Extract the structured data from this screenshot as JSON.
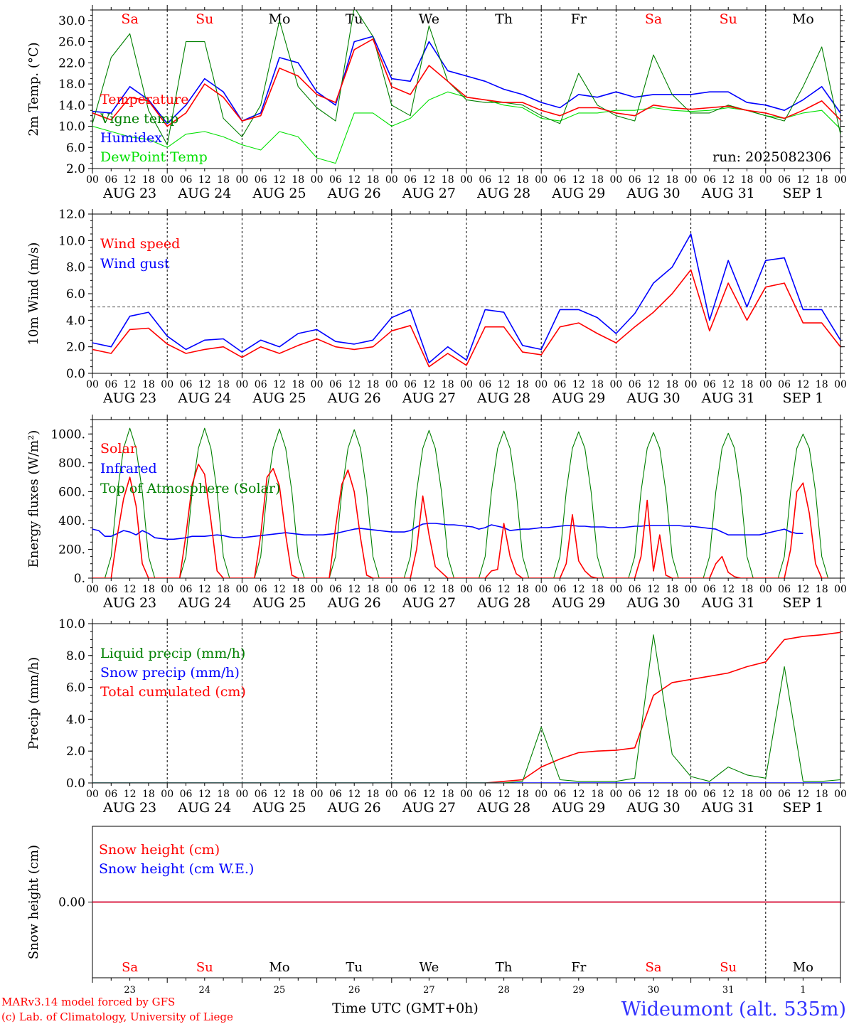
{
  "days": {
    "weekday": [
      "Sa",
      "Su",
      "Mo",
      "Tu",
      "We",
      "Th",
      "Fr",
      "Sa",
      "Su",
      "Mo"
    ],
    "weekend": [
      true,
      true,
      false,
      false,
      false,
      false,
      false,
      true,
      true,
      false
    ],
    "date": [
      "AUG 23",
      "AUG 24",
      "AUG 25",
      "AUG 26",
      "AUG 27",
      "AUG 28",
      "AUG 29",
      "AUG 30",
      "AUG 31",
      "SEP  1"
    ],
    "daynum": [
      "23",
      "24",
      "25",
      "26",
      "27",
      "28",
      "29",
      "30",
      "31",
      "1"
    ],
    "hours": [
      "00",
      "06",
      "12",
      "18"
    ],
    "end_hour": "00"
  },
  "run_label": "run: 2025082306",
  "footer": {
    "model": "MARv3.14 model forced by GFS",
    "credit": "(c) Lab. of Climatology, University of Liege",
    "xlabel": "Time UTC (GMT+0h)",
    "station": "Wideumont (alt. 535m)"
  },
  "colors": {
    "red": "#ff0000",
    "blue": "#0000ff",
    "green": "#008000",
    "lightgreen": "#00e000",
    "grid": "#000000"
  },
  "chart_data": [
    {
      "type": "line",
      "ylabel": "2m Temp. (°C)",
      "ylim": [
        2,
        32
      ],
      "yticks": [
        "2.0",
        "6.0",
        "10.0",
        "14.0",
        "18.0",
        "22.0",
        "26.0",
        "30.0"
      ],
      "x_hours": [
        0,
        6,
        12,
        18,
        24,
        30,
        36,
        42,
        48,
        54,
        60,
        66,
        72,
        78,
        84,
        90,
        96,
        102,
        108,
        114,
        120,
        126,
        132,
        138,
        144,
        150,
        156,
        162,
        168,
        174,
        180,
        186,
        192,
        198,
        204,
        210,
        216,
        222,
        228,
        234,
        240
      ],
      "series": [
        {
          "name": "Temperature",
          "color": "red",
          "values": [
            12.5,
            11.2,
            15.5,
            14.8,
            10.0,
            12.5,
            18.0,
            15.5,
            11.0,
            12.0,
            21.0,
            19.5,
            16.0,
            14.5,
            24.5,
            26.5,
            17.5,
            16.0,
            21.5,
            18.5,
            15.5,
            15.0,
            14.5,
            14.5,
            13.0,
            12.0,
            13.5,
            13.5,
            12.5,
            12.0,
            14.0,
            13.5,
            13.2,
            13.5,
            13.8,
            13.0,
            12.5,
            11.5,
            13.0,
            14.8,
            11.2
          ]
        },
        {
          "name": "Vigne temp",
          "color": "green",
          "values": [
            10.5,
            23.0,
            27.5,
            13.0,
            6.5,
            26.0,
            26.0,
            11.5,
            8.0,
            14.0,
            30.0,
            17.5,
            13.5,
            11.0,
            32.5,
            27.0,
            14.0,
            12.0,
            29.0,
            18.5,
            15.0,
            14.5,
            14.5,
            14.0,
            12.0,
            10.5,
            20.0,
            14.0,
            12.0,
            11.0,
            23.5,
            16.0,
            12.5,
            12.5,
            14.0,
            13.0,
            12.0,
            11.0,
            17.5,
            25.0,
            8.5
          ]
        },
        {
          "name": "Humidex",
          "color": "blue",
          "values": [
            12.8,
            12.5,
            17.5,
            15.0,
            10.5,
            14.0,
            19.0,
            16.5,
            11.0,
            12.5,
            23.0,
            22.0,
            16.5,
            14.0,
            26.0,
            27.0,
            19.0,
            18.5,
            26.0,
            20.5,
            19.5,
            18.5,
            17.0,
            16.0,
            14.5,
            13.5,
            16.0,
            15.5,
            16.5,
            15.5,
            16.0,
            16.0,
            16.0,
            16.5,
            16.5,
            14.5,
            14.0,
            13.0,
            15.0,
            17.5,
            12.5
          ]
        },
        {
          "name": "DewPoint Temp",
          "color": "lightgreen",
          "values": [
            10.0,
            9.0,
            8.0,
            7.5,
            6.0,
            8.5,
            9.0,
            8.0,
            6.5,
            5.5,
            9.0,
            8.0,
            4.0,
            3.0,
            12.5,
            12.5,
            10.0,
            11.5,
            15.0,
            16.5,
            15.5,
            15.0,
            14.0,
            13.5,
            11.5,
            11.0,
            12.5,
            12.5,
            13.0,
            13.0,
            13.5,
            13.0,
            12.8,
            13.0,
            13.5,
            13.0,
            12.0,
            11.5,
            12.5,
            13.0,
            9.5
          ]
        }
      ]
    },
    {
      "type": "line",
      "ylabel": "10m Wind (m/s)",
      "ylim": [
        0,
        12
      ],
      "yticks": [
        "0.0",
        "2.0",
        "4.0",
        "6.0",
        "8.0",
        "10.0",
        "12.0"
      ],
      "reference_line": 5,
      "x_hours": [
        0,
        6,
        12,
        18,
        24,
        30,
        36,
        42,
        48,
        54,
        60,
        66,
        72,
        78,
        84,
        90,
        96,
        102,
        108,
        114,
        120,
        126,
        132,
        138,
        144,
        150,
        156,
        162,
        168,
        174,
        180,
        186,
        192,
        198,
        204,
        210,
        216,
        222,
        228,
        234,
        240
      ],
      "series": [
        {
          "name": "Wind speed",
          "color": "red",
          "values": [
            1.8,
            1.5,
            3.3,
            3.4,
            2.2,
            1.5,
            1.8,
            2.0,
            1.2,
            2.0,
            1.5,
            2.1,
            2.6,
            2.0,
            1.8,
            2.0,
            3.2,
            3.6,
            0.5,
            1.5,
            0.6,
            3.5,
            3.5,
            1.6,
            1.4,
            3.5,
            3.8,
            3.0,
            2.3,
            3.5,
            4.6,
            6.0,
            7.8,
            3.2,
            6.8,
            4.0,
            6.5,
            6.8,
            3.8,
            3.8,
            2.0
          ]
        },
        {
          "name": "Wind gust",
          "color": "blue",
          "values": [
            2.3,
            2.0,
            4.3,
            4.6,
            2.8,
            1.8,
            2.5,
            2.6,
            1.6,
            2.5,
            2.0,
            3.0,
            3.3,
            2.4,
            2.2,
            2.5,
            4.2,
            4.8,
            0.8,
            2.0,
            1.0,
            4.8,
            4.6,
            2.1,
            1.8,
            4.8,
            4.8,
            4.2,
            3.0,
            4.5,
            6.8,
            8.0,
            10.5,
            4.0,
            8.5,
            5.0,
            8.5,
            8.7,
            4.8,
            4.8,
            2.5
          ]
        }
      ]
    },
    {
      "type": "line",
      "ylabel": "Energy fluxes (W/m²)",
      "ylim": [
        0,
        1100
      ],
      "yticks": [
        "0.",
        "200.",
        "400.",
        "600.",
        "800.",
        "1000."
      ],
      "x_hours": [
        0,
        2,
        4,
        6,
        8,
        10,
        12,
        14,
        16,
        18,
        20,
        22,
        24,
        26,
        28,
        30,
        32,
        34,
        36,
        38,
        40,
        42,
        44,
        46,
        48,
        50,
        52,
        54,
        56,
        58,
        60,
        62,
        64,
        66,
        68,
        70,
        72,
        74,
        76,
        78,
        80,
        82,
        84,
        86,
        88,
        90,
        92,
        94,
        96,
        98,
        100,
        102,
        104,
        106,
        108,
        110,
        112,
        114,
        116,
        118,
        120,
        122,
        124,
        126,
        128,
        130,
        132,
        134,
        136,
        138,
        140,
        142,
        144,
        146,
        148,
        150,
        152,
        154,
        156,
        158,
        160,
        162,
        164,
        166,
        168,
        170,
        172,
        174,
        176,
        178,
        180,
        182,
        184,
        186,
        188,
        190,
        192,
        194,
        196,
        198,
        200,
        202,
        204,
        206,
        208,
        210,
        212,
        214,
        216,
        218,
        220,
        222,
        224,
        226,
        228,
        230,
        232,
        234,
        236,
        238,
        240
      ],
      "series": [
        {
          "name": "Solar",
          "color": "red",
          "values": [
            0,
            0,
            0,
            0,
            300,
            550,
            700,
            500,
            100,
            0,
            0,
            0,
            0,
            0,
            0,
            300,
            650,
            790,
            720,
            400,
            50,
            0,
            0,
            0,
            0,
            0,
            0,
            300,
            700,
            760,
            640,
            300,
            20,
            0,
            0,
            0,
            0,
            0,
            0,
            350,
            650,
            750,
            600,
            280,
            20,
            0,
            0,
            0,
            0,
            0,
            0,
            0,
            200,
            570,
            300,
            80,
            40,
            0,
            0,
            0,
            0,
            0,
            0,
            0,
            50,
            60,
            380,
            150,
            30,
            0,
            0,
            0,
            0,
            0,
            0,
            0,
            100,
            440,
            120,
            50,
            10,
            0,
            0,
            0,
            0,
            0,
            0,
            0,
            150,
            540,
            50,
            300,
            20,
            0,
            0,
            0,
            0,
            0,
            0,
            0,
            100,
            150,
            40,
            10,
            0,
            0,
            0,
            0,
            0,
            0,
            0,
            0,
            200,
            600,
            660,
            450,
            100,
            0,
            0
          ]
        },
        {
          "name": "Infrared",
          "color": "blue",
          "values": [
            340,
            330,
            290,
            290,
            310,
            330,
            320,
            300,
            330,
            310,
            280,
            275,
            270,
            270,
            275,
            280,
            290,
            290,
            290,
            295,
            300,
            295,
            285,
            280,
            280,
            285,
            290,
            295,
            300,
            305,
            310,
            315,
            310,
            305,
            300,
            300,
            300,
            300,
            305,
            310,
            320,
            330,
            340,
            345,
            340,
            335,
            330,
            325,
            320,
            320,
            320,
            330,
            355,
            375,
            380,
            380,
            375,
            370,
            370,
            365,
            360,
            355,
            340,
            350,
            370,
            360,
            350,
            330,
            335,
            340,
            340,
            345,
            350,
            350,
            355,
            360,
            365,
            365,
            360,
            360,
            355,
            355,
            355,
            350,
            350,
            350,
            355,
            360,
            360,
            365,
            365,
            365,
            365,
            365,
            365,
            360,
            360,
            355,
            350,
            345,
            340,
            320,
            300,
            300,
            300,
            300,
            300,
            300,
            310,
            320,
            330,
            340,
            320,
            310,
            310
          ]
        },
        {
          "name": "Top of Atmosphere (Solar)",
          "color": "green",
          "values": [
            0,
            0,
            0,
            150,
            600,
            900,
            1040,
            900,
            600,
            150,
            0,
            0,
            0,
            0,
            0,
            150,
            600,
            900,
            1040,
            900,
            600,
            150,
            0,
            0,
            0,
            0,
            0,
            150,
            600,
            900,
            1035,
            900,
            600,
            150,
            0,
            0,
            0,
            0,
            0,
            150,
            600,
            900,
            1030,
            900,
            600,
            150,
            0,
            0,
            0,
            0,
            0,
            150,
            600,
            900,
            1025,
            900,
            600,
            150,
            0,
            0,
            0,
            0,
            0,
            150,
            600,
            900,
            1020,
            900,
            600,
            150,
            0,
            0,
            0,
            0,
            0,
            150,
            600,
            900,
            1015,
            900,
            600,
            150,
            0,
            0,
            0,
            0,
            0,
            150,
            600,
            900,
            1010,
            900,
            600,
            150,
            0,
            0,
            0,
            0,
            0,
            150,
            600,
            900,
            1005,
            900,
            600,
            150,
            0,
            0,
            0,
            0,
            0,
            150,
            600,
            900,
            1000,
            900,
            600,
            150,
            0
          ]
        }
      ]
    },
    {
      "type": "line",
      "ylabel": "Precip (mm/h)",
      "ylim": [
        0,
        10
      ],
      "yticks": [
        "0.0",
        "2.0",
        "4.0",
        "6.0",
        "8.0",
        "10.0"
      ],
      "x_hours": [
        0,
        6,
        12,
        18,
        24,
        30,
        36,
        42,
        48,
        54,
        60,
        66,
        72,
        78,
        84,
        90,
        96,
        102,
        108,
        114,
        120,
        126,
        132,
        138,
        144,
        150,
        156,
        162,
        168,
        174,
        180,
        186,
        192,
        198,
        204,
        210,
        216,
        222,
        228,
        234,
        240
      ],
      "series": [
        {
          "name": "Liquid precip (mm/h)",
          "color": "green",
          "values": [
            0,
            0,
            0,
            0,
            0,
            0,
            0,
            0,
            0,
            0,
            0,
            0,
            0,
            0,
            0,
            0,
            0,
            0,
            0,
            0,
            0,
            0,
            0,
            0.1,
            3.5,
            0.2,
            0.1,
            0.1,
            0.1,
            0.3,
            9.3,
            1.8,
            0.4,
            0.1,
            1.0,
            0.5,
            0.3,
            7.3,
            0.1,
            0.1,
            0.2
          ]
        },
        {
          "name": "Snow precip (mm/h)",
          "color": "blue",
          "values": [
            0,
            0,
            0,
            0,
            0,
            0,
            0,
            0,
            0,
            0,
            0,
            0,
            0,
            0,
            0,
            0,
            0,
            0,
            0,
            0,
            0,
            0,
            0,
            0,
            0,
            0,
            0,
            0,
            0,
            0,
            0,
            0,
            0,
            0,
            0,
            0,
            0,
            0,
            0,
            0,
            0
          ]
        },
        {
          "name": "Total cumulated (cm)",
          "color": "red",
          "values": [
            0,
            0,
            0,
            0,
            0,
            0,
            0,
            0,
            0,
            0,
            0,
            0,
            0,
            0,
            0,
            0,
            0,
            0,
            0,
            0,
            0,
            0,
            0.1,
            0.2,
            1.0,
            1.5,
            1.9,
            2.0,
            2.05,
            2.2,
            5.5,
            6.3,
            6.5,
            6.7,
            6.9,
            7.3,
            7.6,
            9.0,
            9.2,
            9.3,
            9.45
          ]
        }
      ]
    },
    {
      "type": "line",
      "ylabel": "Snow height (cm)",
      "ylim": [
        -1,
        1
      ],
      "yticks": [
        "0.00"
      ],
      "x_hours": [
        0,
        240
      ],
      "series": [
        {
          "name": "Snow height (cm)",
          "color": "red",
          "values": [
            0,
            0
          ]
        },
        {
          "name": "Snow height (cm W.E.)",
          "color": "blue",
          "values": [
            0,
            0
          ]
        }
      ]
    }
  ]
}
